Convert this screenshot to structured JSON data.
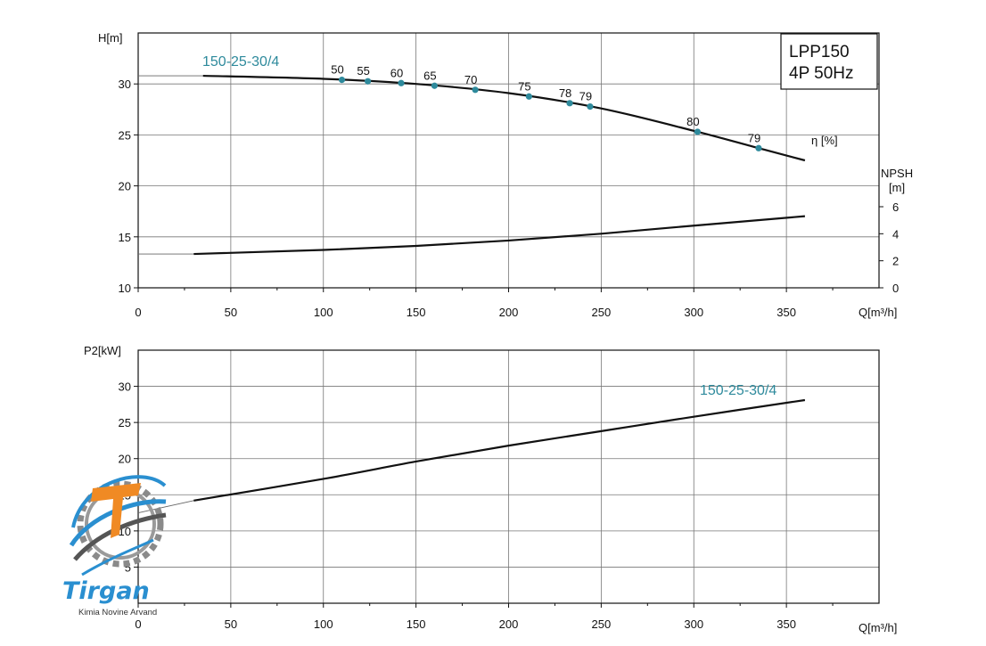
{
  "chart_data": [
    {
      "type": "line",
      "title": "LPP150",
      "subtitle": "4P  50Hz",
      "xlabel": "Q[m³/h]",
      "ylabel": "H[m]",
      "y2label": "NPSH [m]",
      "xlim": [
        0,
        400
      ],
      "ylim": [
        10,
        35
      ],
      "y2lim": [
        0,
        6
      ],
      "xticks": [
        "0",
        "50",
        "100",
        "150",
        "200",
        "250",
        "300",
        "350"
      ],
      "yticks": [
        "10",
        "15",
        "20",
        "25",
        "30"
      ],
      "y2ticks": [
        "0",
        "2",
        "4",
        "6"
      ],
      "grid": true,
      "series": [
        {
          "name": "150-25-30/4",
          "axis": "H",
          "x": [
            0,
            35,
            100,
            150,
            200,
            250,
            300,
            335,
            360
          ],
          "y": [
            30.8,
            30.8,
            30.5,
            30.0,
            29.1,
            27.6,
            25.4,
            23.7,
            22.5
          ],
          "solid_from": 35
        },
        {
          "name": "NPSH",
          "axis": "NPSH",
          "x": [
            0,
            30,
            100,
            150,
            200,
            250,
            300,
            360
          ],
          "y": [
            2.5,
            2.5,
            2.8,
            3.1,
            3.5,
            4.0,
            4.6,
            5.3
          ],
          "solid_from": 30
        }
      ],
      "efficiency_points": {
        "label": "η [%]",
        "q": [
          110,
          124,
          142,
          160,
          182,
          211,
          233,
          244,
          302,
          335
        ],
        "eta": [
          50,
          55,
          60,
          65,
          70,
          75,
          78,
          79,
          80,
          79
        ]
      }
    },
    {
      "type": "line",
      "xlabel": "Q[m³/h]",
      "ylabel": "P2[kW]",
      "xlim": [
        0,
        400
      ],
      "ylim": [
        0,
        35
      ],
      "xticks": [
        "0",
        "50",
        "100",
        "150",
        "200",
        "250",
        "300",
        "350"
      ],
      "yticks": [
        "5",
        "10",
        "15",
        "20",
        "25",
        "30"
      ],
      "grid": true,
      "series": [
        {
          "name": "150-25-30/4",
          "x": [
            0,
            30,
            100,
            150,
            200,
            250,
            300,
            360
          ],
          "y": [
            12.5,
            14.2,
            17.2,
            19.6,
            21.8,
            23.8,
            25.8,
            28.1
          ],
          "solid_from": 30
        }
      ]
    }
  ],
  "logo": {
    "brand": "Tirgan",
    "tagline": "Kimia Novine Arvand",
    "colors": {
      "blue": "#2a8fd0",
      "orange": "#f08a24",
      "gray": "#6b6b6b"
    }
  },
  "colors": {
    "accent": "#2e8a9c",
    "curve": "#111111"
  }
}
